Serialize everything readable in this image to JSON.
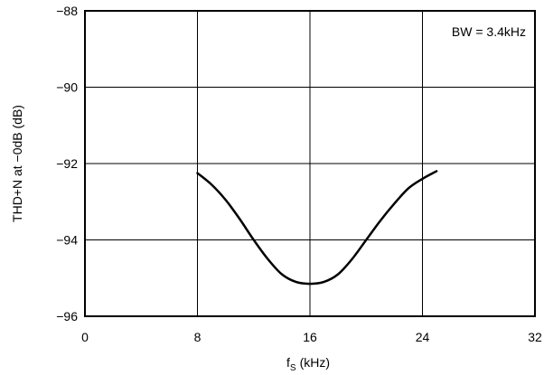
{
  "chart_data": {
    "type": "line",
    "title": "",
    "xlabel": "(kHz)",
    "xlabel_symbol": "f",
    "xlabel_subscript": "S",
    "ylabel": "THD+N at −0dB (dB)",
    "xlim": [
      0,
      32
    ],
    "ylim": [
      -96,
      -88
    ],
    "xticks": [
      0,
      8,
      16,
      24,
      32
    ],
    "yticks": [
      -88,
      -90,
      -92,
      -94,
      -96
    ],
    "xtick_labels": [
      "0",
      "8",
      "16",
      "24",
      "32"
    ],
    "ytick_labels": [
      "−88",
      "−90",
      "−92",
      "−94",
      "−96"
    ],
    "grid": true,
    "annotation": "BW = 3.4kHz",
    "annotation_position": "top-right",
    "series": [
      {
        "x": [
          8,
          9,
          10,
          11,
          12,
          13,
          14,
          15,
          16,
          17,
          18,
          19,
          20,
          21,
          22,
          23,
          24,
          25
        ],
        "y": [
          -92.25,
          -92.55,
          -92.95,
          -93.45,
          -94.0,
          -94.5,
          -94.9,
          -95.1,
          -95.15,
          -95.1,
          -94.9,
          -94.5,
          -94.0,
          -93.5,
          -93.05,
          -92.65,
          -92.4,
          -92.2
        ],
        "color": "#000000"
      }
    ]
  }
}
